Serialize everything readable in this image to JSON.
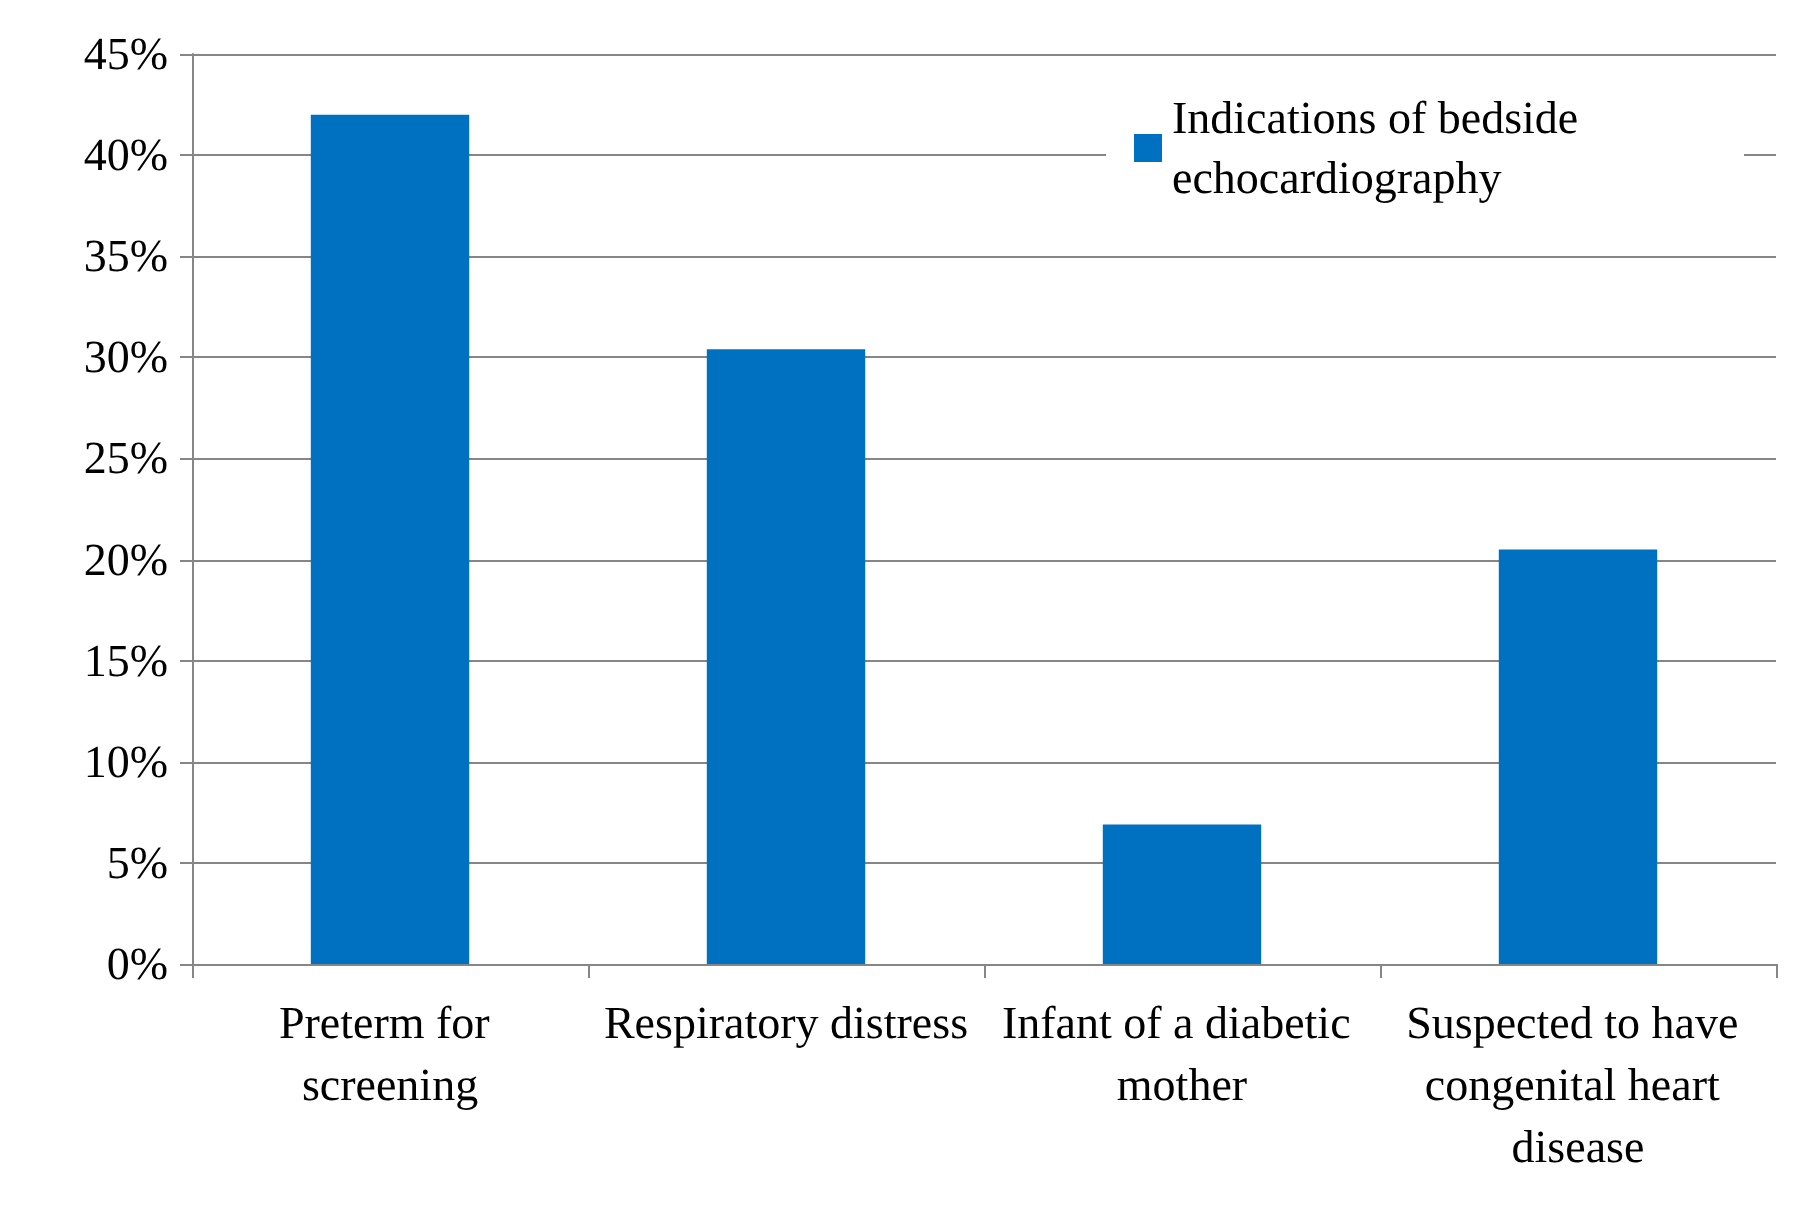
{
  "chart_data": {
    "type": "bar",
    "categories": [
      "Preterm for screening",
      "Respiratory distress",
      "Infant of a diabetic mother",
      "Suspected to have congenital heart disease"
    ],
    "series": [
      {
        "name": "Indications of bedside echocardiography",
        "color": "#0070c0",
        "values": [
          42,
          30.4,
          6.9,
          20.5
        ]
      }
    ],
    "ylim": [
      0,
      45
    ],
    "yticks": [
      {
        "value": 0,
        "label": "0%"
      },
      {
        "value": 5,
        "label": "5%"
      },
      {
        "value": 10,
        "label": "10%"
      },
      {
        "value": 15,
        "label": "15%"
      },
      {
        "value": 20,
        "label": "20%"
      },
      {
        "value": 25,
        "label": "25%"
      },
      {
        "value": 30,
        "label": "30%"
      },
      {
        "value": 35,
        "label": "35%"
      },
      {
        "value": 40,
        "label": "40%"
      },
      {
        "value": 45,
        "label": "45%"
      }
    ],
    "grid": "y",
    "legend": "top right"
  }
}
